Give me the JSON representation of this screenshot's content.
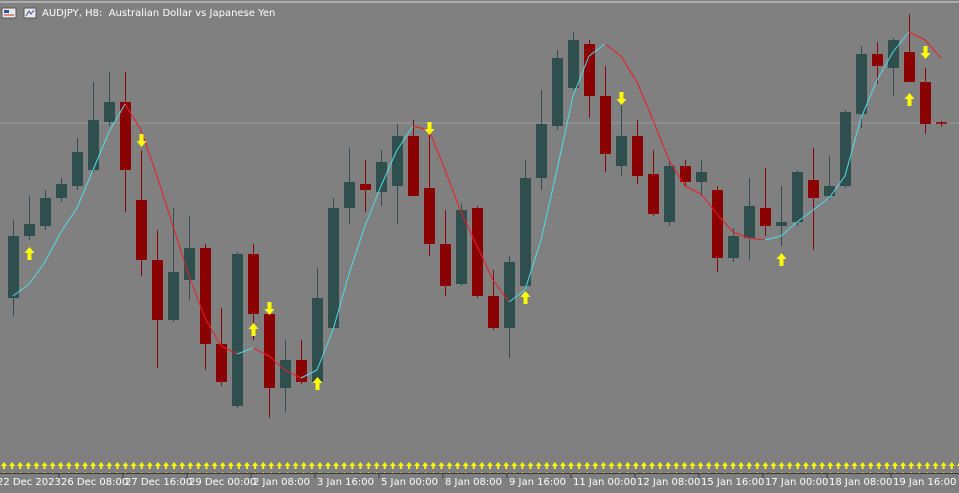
{
  "chart_data": {
    "type": "candlestick",
    "title": "AUDJPY, H8:  Australian Dollar vs Japanese Yen",
    "categories": [
      "22 Dec 2023",
      null,
      null,
      null,
      "26 Dec 08:00",
      null,
      null,
      null,
      "27 Dec 16:00",
      null,
      null,
      null,
      "29 Dec 00:00",
      null,
      null,
      null,
      "2 Jan 08:00",
      null,
      null,
      null,
      "3 Jan 16:00",
      null,
      null,
      null,
      "5 Jan 00:00",
      null,
      null,
      null,
      "8 Jan 08:00",
      null,
      null,
      null,
      "9 Jan 16:00",
      null,
      null,
      null,
      "11 Jan 00:00",
      null,
      null,
      null,
      "12 Jan 08:00",
      null,
      null,
      null,
      "15 Jan 16:00",
      null,
      null,
      null,
      "17 Jan 00:00",
      null,
      null,
      null,
      "18 Jan 08:00",
      null,
      null,
      null,
      "19 Jan 16:00",
      null,
      null
    ],
    "open": [
      162,
      224,
      234,
      262,
      274,
      290,
      338,
      358,
      260,
      200,
      140,
      180,
      212,
      116,
      54,
      206,
      146,
      72,
      100,
      78,
      132,
      252,
      276,
      268,
      274,
      324,
      272,
      216,
      176,
      252,
      164,
      132,
      174,
      282,
      334,
      372,
      416,
      364,
      294,
      324,
      286,
      238,
      294,
      278,
      270,
      202,
      222,
      252,
      234,
      238,
      280,
      264,
      274,
      346,
      406,
      392,
      408,
      378,
      337
    ],
    "high": [
      240,
      264,
      270,
      282,
      322,
      378,
      388,
      388,
      310,
      230,
      252,
      244,
      216,
      152,
      208,
      216,
      150,
      120,
      120,
      192,
      262,
      312,
      300,
      310,
      336,
      340,
      328,
      250,
      256,
      254,
      190,
      204,
      300,
      370,
      410,
      428,
      420,
      394,
      360,
      340,
      310,
      298,
      300,
      300,
      274,
      232,
      282,
      292,
      274,
      290,
      312,
      304,
      350,
      414,
      418,
      422,
      446,
      392,
      339
    ],
    "low": [
      144,
      220,
      230,
      258,
      270,
      288,
      334,
      248,
      184,
      92,
      138,
      160,
      90,
      74,
      52,
      120,
      42,
      48,
      76,
      76,
      130,
      236,
      248,
      254,
      236,
      264,
      204,
      164,
      174,
      162,
      130,
      102,
      168,
      270,
      330,
      370,
      342,
      288,
      284,
      276,
      244,
      234,
      274,
      264,
      188,
      198,
      200,
      224,
      214,
      234,
      210,
      260,
      272,
      332,
      376,
      364,
      378,
      326,
      333
    ],
    "close": [
      224,
      236,
      262,
      276,
      308,
      340,
      358,
      290,
      200,
      140,
      188,
      212,
      116,
      78,
      206,
      146,
      72,
      100,
      78,
      162,
      252,
      278,
      270,
      298,
      324,
      264,
      216,
      174,
      250,
      164,
      132,
      198,
      282,
      336,
      402,
      420,
      364,
      306,
      324,
      284,
      246,
      294,
      278,
      288,
      202,
      224,
      254,
      234,
      238,
      288,
      262,
      274,
      348,
      406,
      394,
      420,
      378,
      336,
      337
    ],
    "ma": [
      164,
      176,
      198,
      228,
      252,
      290,
      328,
      356,
      330,
      284,
      234,
      184,
      142,
      114,
      106,
      112,
      104,
      90,
      82,
      90,
      130,
      186,
      234,
      274,
      310,
      334,
      330,
      290,
      248,
      214,
      180,
      158,
      170,
      220,
      290,
      364,
      404,
      416,
      404,
      378,
      340,
      300,
      274,
      266,
      246,
      228,
      222,
      220,
      224,
      238,
      250,
      262,
      284,
      342,
      380,
      408,
      428,
      420,
      402
    ],
    "signal_up": [
      null,
      206,
      null,
      null,
      null,
      null,
      null,
      null,
      null,
      null,
      null,
      null,
      null,
      null,
      null,
      130,
      null,
      null,
      null,
      76,
      null,
      null,
      null,
      null,
      null,
      null,
      null,
      null,
      null,
      null,
      null,
      null,
      162,
      null,
      null,
      null,
      null,
      null,
      null,
      null,
      null,
      null,
      null,
      null,
      null,
      null,
      null,
      null,
      200,
      null,
      null,
      null,
      null,
      null,
      null,
      null,
      360,
      null,
      null
    ],
    "signal_down": [
      null,
      null,
      null,
      null,
      null,
      null,
      null,
      null,
      320,
      null,
      null,
      null,
      null,
      null,
      null,
      null,
      152,
      null,
      null,
      null,
      null,
      null,
      null,
      null,
      null,
      null,
      332,
      null,
      null,
      null,
      null,
      null,
      null,
      null,
      null,
      null,
      null,
      null,
      362,
      null,
      null,
      null,
      null,
      null,
      null,
      null,
      null,
      null,
      null,
      null,
      null,
      null,
      null,
      null,
      null,
      null,
      null,
      408,
      null
    ],
    "ylim": [
      0,
      460
    ],
    "colors": {
      "bull": "#2f4f4f",
      "bear": "#8b0000",
      "ma_up": "#4fdde6",
      "ma_down": "#ee1b22",
      "signal": "#ffff00"
    }
  }
}
